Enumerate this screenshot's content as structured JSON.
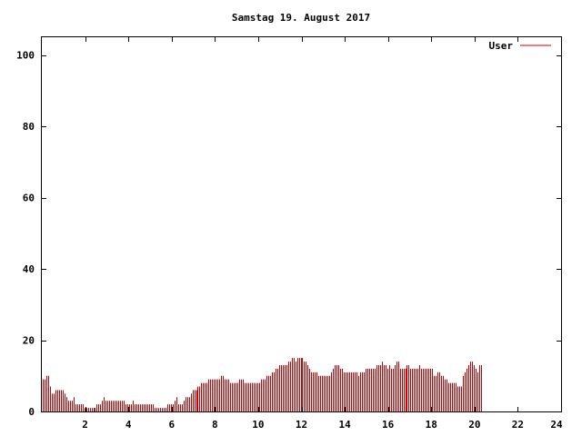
{
  "chart_data": {
    "type": "bar",
    "title": "Samstag 19. August 2017",
    "xlabel": "",
    "ylabel": "",
    "xlim": [
      0,
      24
    ],
    "ylim": [
      0,
      105
    ],
    "x_ticks": [
      2,
      4,
      6,
      8,
      10,
      12,
      14,
      16,
      18,
      20,
      22,
      24
    ],
    "y_ticks": [
      0,
      20,
      40,
      60,
      80,
      100
    ],
    "grid": false,
    "legend_position": "top-right",
    "series": [
      {
        "name": "User",
        "color": "#cc0000",
        "interval_hours": 0.0833333,
        "values": [
          9,
          9,
          10,
          10,
          7,
          5,
          5,
          6,
          6,
          6,
          6,
          6,
          5,
          4,
          3,
          3,
          3,
          4,
          2,
          2,
          2,
          2,
          2,
          1,
          1,
          1,
          1,
          1,
          1,
          1,
          2,
          2,
          2,
          3,
          4,
          3,
          3,
          3,
          3,
          3,
          3,
          3,
          3,
          3,
          3,
          3,
          2,
          2,
          2,
          2,
          3,
          2,
          2,
          2,
          2,
          2,
          2,
          2,
          2,
          2,
          2,
          2,
          1,
          1,
          1,
          1,
          1,
          1,
          1,
          2,
          2,
          2,
          2,
          3,
          4,
          2,
          2,
          2,
          3,
          4,
          4,
          4,
          5,
          6,
          6,
          6,
          7,
          7,
          8,
          8,
          8,
          8,
          9,
          9,
          9,
          9,
          9,
          9,
          9,
          10,
          10,
          9,
          9,
          9,
          8,
          8,
          8,
          8,
          8,
          9,
          9,
          9,
          8,
          8,
          8,
          8,
          8,
          8,
          8,
          8,
          8,
          9,
          9,
          9,
          10,
          10,
          10,
          11,
          11,
          12,
          12,
          13,
          13,
          13,
          13,
          13,
          14,
          14,
          15,
          15,
          14,
          15,
          15,
          15,
          15,
          14,
          14,
          13,
          12,
          11,
          11,
          11,
          11,
          10,
          10,
          10,
          10,
          10,
          10,
          10,
          11,
          12,
          13,
          13,
          13,
          12,
          12,
          11,
          11,
          11,
          11,
          11,
          11,
          11,
          11,
          10,
          11,
          11,
          11,
          12,
          12,
          12,
          12,
          12,
          12,
          13,
          13,
          13,
          14,
          13,
          13,
          12,
          13,
          12,
          12,
          13,
          14,
          14,
          12,
          12,
          12,
          12,
          13,
          13,
          12,
          12,
          12,
          12,
          12,
          13,
          12,
          12,
          12,
          12,
          12,
          12,
          12,
          10,
          10,
          11,
          11,
          10,
          10,
          9,
          9,
          8,
          8,
          8,
          8,
          8,
          7,
          7,
          7,
          10,
          11,
          12,
          13,
          14,
          14,
          13,
          12,
          11,
          13,
          13
        ]
      }
    ]
  }
}
